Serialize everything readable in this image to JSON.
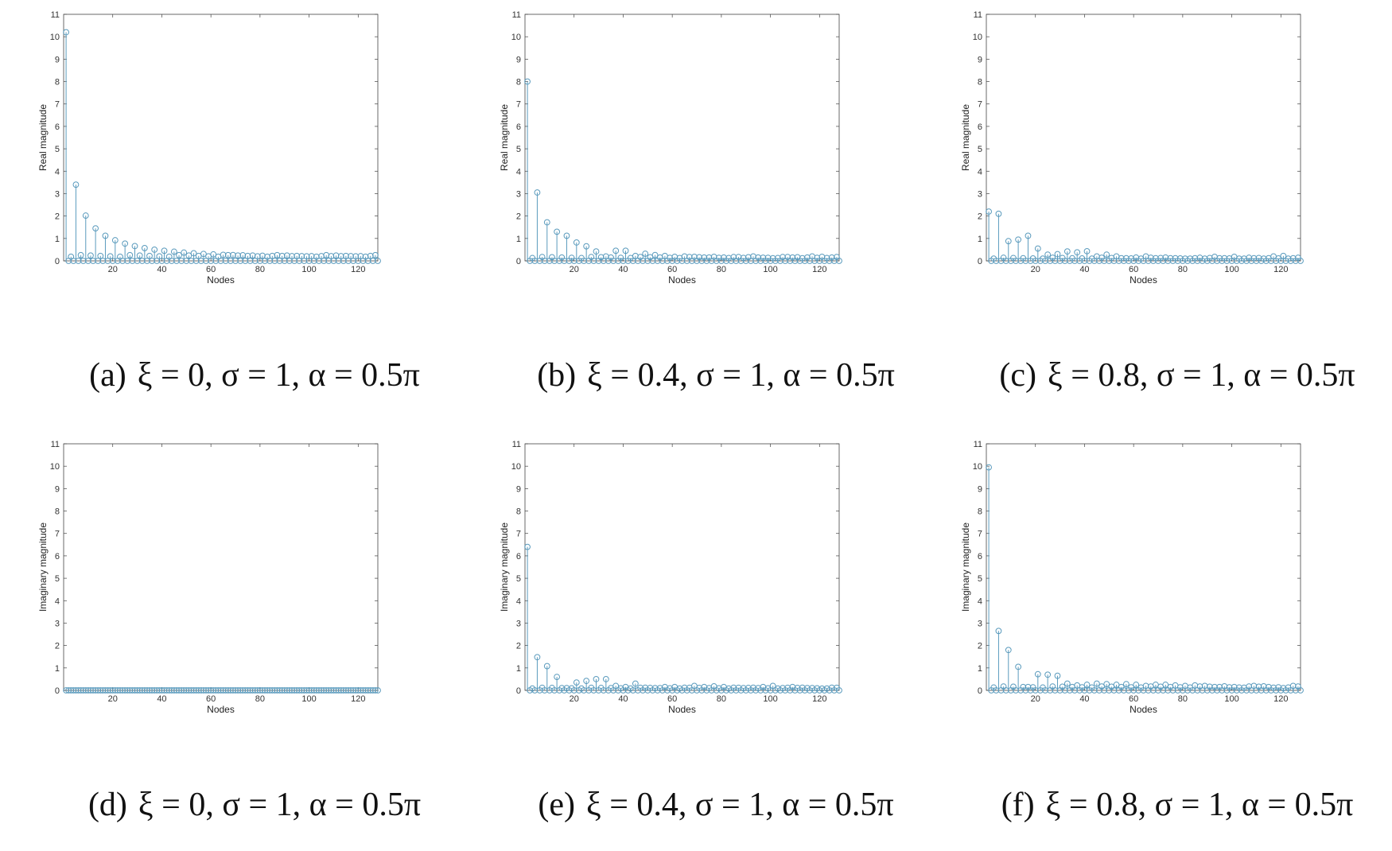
{
  "chart_data": [
    {
      "id": "a",
      "type": "stem",
      "caption": {
        "label": "(a)",
        "math": "ξ = 0, σ = 1, α = 0.5π"
      },
      "xlabel": "Nodes",
      "ylabel": "Real magnitude",
      "xlim": [
        0,
        128
      ],
      "ylim": [
        0,
        11
      ],
      "xticks": [
        20,
        40,
        60,
        80,
        100,
        120
      ],
      "yticks": [
        0,
        1,
        2,
        3,
        4,
        5,
        6,
        7,
        8,
        9,
        10,
        11
      ],
      "grid": false,
      "color": "#5b9bbd",
      "peaks": [
        [
          1,
          10.2
        ],
        [
          5,
          3.4
        ],
        [
          9,
          2.02
        ],
        [
          13,
          1.45
        ],
        [
          17,
          1.12
        ],
        [
          21,
          0.92
        ],
        [
          25,
          0.77
        ],
        [
          29,
          0.66
        ],
        [
          33,
          0.57
        ],
        [
          37,
          0.5
        ],
        [
          41,
          0.45
        ],
        [
          45,
          0.41
        ],
        [
          49,
          0.37
        ],
        [
          53,
          0.34
        ],
        [
          57,
          0.31
        ],
        [
          61,
          0.29
        ],
        [
          65,
          0.27
        ],
        [
          69,
          0.26
        ],
        [
          73,
          0.25
        ],
        [
          77,
          0.24
        ],
        [
          81,
          0.23
        ],
        [
          85,
          0.22
        ],
        [
          89,
          0.22
        ],
        [
          93,
          0.21
        ],
        [
          97,
          0.21
        ],
        [
          101,
          0.21
        ],
        [
          105,
          0.21
        ],
        [
          109,
          0.21
        ],
        [
          113,
          0.21
        ],
        [
          117,
          0.21
        ],
        [
          121,
          0.21
        ],
        [
          125,
          0.22
        ]
      ],
      "secondary": 0.22,
      "baseline": 0.0
    },
    {
      "id": "b",
      "type": "stem",
      "caption": {
        "label": "(b)",
        "math": "ξ = 0.4, σ = 1, α = 0.5π"
      },
      "xlabel": "Nodes",
      "ylabel": "Real magnitude",
      "xlim": [
        0,
        128
      ],
      "ylim": [
        0,
        11
      ],
      "xticks": [
        20,
        40,
        60,
        80,
        100,
        120
      ],
      "yticks": [
        0,
        1,
        2,
        3,
        4,
        5,
        6,
        7,
        8,
        9,
        10,
        11
      ],
      "grid": false,
      "color": "#5b9bbd",
      "peaks": [
        [
          1,
          8.0
        ],
        [
          5,
          3.05
        ],
        [
          9,
          1.72
        ],
        [
          13,
          1.3
        ],
        [
          17,
          1.12
        ],
        [
          21,
          0.82
        ],
        [
          25,
          0.65
        ],
        [
          29,
          0.42
        ],
        [
          33,
          0.2
        ],
        [
          37,
          0.45
        ],
        [
          41,
          0.45
        ],
        [
          45,
          0.22
        ],
        [
          49,
          0.32
        ],
        [
          53,
          0.26
        ],
        [
          57,
          0.22
        ],
        [
          61,
          0.18
        ],
        [
          65,
          0.2
        ],
        [
          69,
          0.18
        ],
        [
          73,
          0.15
        ],
        [
          77,
          0.18
        ],
        [
          81,
          0.15
        ],
        [
          85,
          0.17
        ],
        [
          89,
          0.13
        ],
        [
          93,
          0.2
        ],
        [
          97,
          0.14
        ],
        [
          101,
          0.12
        ],
        [
          105,
          0.17
        ],
        [
          109,
          0.15
        ],
        [
          113,
          0.12
        ],
        [
          117,
          0.2
        ],
        [
          121,
          0.18
        ],
        [
          125,
          0.15
        ]
      ],
      "secondary": 0.15,
      "baseline": 0.0
    },
    {
      "id": "c",
      "type": "stem",
      "caption": {
        "label": "(c)",
        "math": "ξ = 0.8, σ = 1, α = 0.5π"
      },
      "xlabel": "Nodes",
      "ylabel": "Real magnitude",
      "xlim": [
        0,
        128
      ],
      "ylim": [
        0,
        11
      ],
      "xticks": [
        20,
        40,
        60,
        80,
        100,
        120
      ],
      "yticks": [
        0,
        1,
        2,
        3,
        4,
        5,
        6,
        7,
        8,
        9,
        10,
        11
      ],
      "grid": false,
      "color": "#5b9bbd",
      "peaks": [
        [
          1,
          2.2
        ],
        [
          5,
          2.1
        ],
        [
          9,
          0.88
        ],
        [
          13,
          0.95
        ],
        [
          17,
          1.12
        ],
        [
          21,
          0.55
        ],
        [
          25,
          0.28
        ],
        [
          29,
          0.3
        ],
        [
          33,
          0.42
        ],
        [
          37,
          0.38
        ],
        [
          41,
          0.43
        ],
        [
          45,
          0.2
        ],
        [
          49,
          0.28
        ],
        [
          53,
          0.2
        ],
        [
          57,
          0.12
        ],
        [
          61,
          0.15
        ],
        [
          65,
          0.2
        ],
        [
          69,
          0.12
        ],
        [
          73,
          0.15
        ],
        [
          77,
          0.12
        ],
        [
          81,
          0.1
        ],
        [
          85,
          0.12
        ],
        [
          89,
          0.1
        ],
        [
          93,
          0.18
        ],
        [
          97,
          0.12
        ],
        [
          101,
          0.18
        ],
        [
          105,
          0.1
        ],
        [
          109,
          0.12
        ],
        [
          113,
          0.1
        ],
        [
          117,
          0.2
        ],
        [
          121,
          0.22
        ],
        [
          125,
          0.12
        ]
      ],
      "secondary": 0.12,
      "baseline": 0.0
    },
    {
      "id": "d",
      "type": "stem",
      "caption": {
        "label": "(d)",
        "math": "ξ = 0, σ = 1, α = 0.5π"
      },
      "xlabel": "Nodes",
      "ylabel": "Imaginary magnitude",
      "xlim": [
        0,
        128
      ],
      "ylim": [
        0,
        11
      ],
      "xticks": [
        20,
        40,
        60,
        80,
        100,
        120
      ],
      "yticks": [
        0,
        1,
        2,
        3,
        4,
        5,
        6,
        7,
        8,
        9,
        10,
        11
      ],
      "grid": false,
      "color": "#5b9bbd",
      "peaks": [],
      "secondary": 0.0,
      "baseline": 0.0
    },
    {
      "id": "e",
      "type": "stem",
      "caption": {
        "label": "(e)",
        "math": "ξ = 0.4, σ = 1, α = 0.5π"
      },
      "xlabel": "Nodes",
      "ylabel": "Imaginary magnitude",
      "xlim": [
        0,
        128
      ],
      "ylim": [
        0,
        11
      ],
      "xticks": [
        20,
        40,
        60,
        80,
        100,
        120
      ],
      "yticks": [
        0,
        1,
        2,
        3,
        4,
        5,
        6,
        7,
        8,
        9,
        10,
        11
      ],
      "grid": false,
      "color": "#5b9bbd",
      "peaks": [
        [
          1,
          6.4
        ],
        [
          5,
          1.48
        ],
        [
          9,
          1.08
        ],
        [
          13,
          0.6
        ],
        [
          17,
          0.1
        ],
        [
          21,
          0.35
        ],
        [
          25,
          0.42
        ],
        [
          29,
          0.5
        ],
        [
          33,
          0.5
        ],
        [
          37,
          0.2
        ],
        [
          41,
          0.15
        ],
        [
          45,
          0.3
        ],
        [
          49,
          0.12
        ],
        [
          53,
          0.1
        ],
        [
          57,
          0.15
        ],
        [
          61,
          0.15
        ],
        [
          65,
          0.12
        ],
        [
          69,
          0.2
        ],
        [
          73,
          0.15
        ],
        [
          77,
          0.18
        ],
        [
          81,
          0.15
        ],
        [
          85,
          0.12
        ],
        [
          89,
          0.1
        ],
        [
          93,
          0.12
        ],
        [
          97,
          0.15
        ],
        [
          101,
          0.2
        ],
        [
          105,
          0.1
        ],
        [
          109,
          0.15
        ],
        [
          113,
          0.12
        ],
        [
          117,
          0.1
        ],
        [
          121,
          0.08
        ],
        [
          125,
          0.12
        ]
      ],
      "secondary": 0.1,
      "baseline": 0.0
    },
    {
      "id": "f",
      "type": "stem",
      "caption": {
        "label": "(f)",
        "math": "ξ = 0.8, σ = 1, α = 0.5π"
      },
      "xlabel": "Nodes",
      "ylabel": "Imaginary magnitude",
      "xlim": [
        0,
        128
      ],
      "ylim": [
        0,
        11
      ],
      "xticks": [
        20,
        40,
        60,
        80,
        100,
        120
      ],
      "yticks": [
        0,
        1,
        2,
        3,
        4,
        5,
        6,
        7,
        8,
        9,
        10,
        11
      ],
      "grid": false,
      "color": "#5b9bbd",
      "peaks": [
        [
          1,
          9.95
        ],
        [
          5,
          2.65
        ],
        [
          9,
          1.8
        ],
        [
          13,
          1.05
        ],
        [
          17,
          0.15
        ],
        [
          21,
          0.72
        ],
        [
          25,
          0.7
        ],
        [
          29,
          0.65
        ],
        [
          33,
          0.3
        ],
        [
          37,
          0.22
        ],
        [
          41,
          0.25
        ],
        [
          45,
          0.3
        ],
        [
          49,
          0.28
        ],
        [
          53,
          0.25
        ],
        [
          57,
          0.28
        ],
        [
          61,
          0.25
        ],
        [
          65,
          0.2
        ],
        [
          69,
          0.25
        ],
        [
          73,
          0.25
        ],
        [
          77,
          0.22
        ],
        [
          81,
          0.2
        ],
        [
          85,
          0.22
        ],
        [
          89,
          0.2
        ],
        [
          93,
          0.15
        ],
        [
          97,
          0.18
        ],
        [
          101,
          0.15
        ],
        [
          105,
          0.12
        ],
        [
          109,
          0.2
        ],
        [
          113,
          0.18
        ],
        [
          117,
          0.12
        ],
        [
          121,
          0.1
        ],
        [
          125,
          0.2
        ]
      ],
      "secondary": 0.15,
      "baseline": 0.0
    }
  ]
}
